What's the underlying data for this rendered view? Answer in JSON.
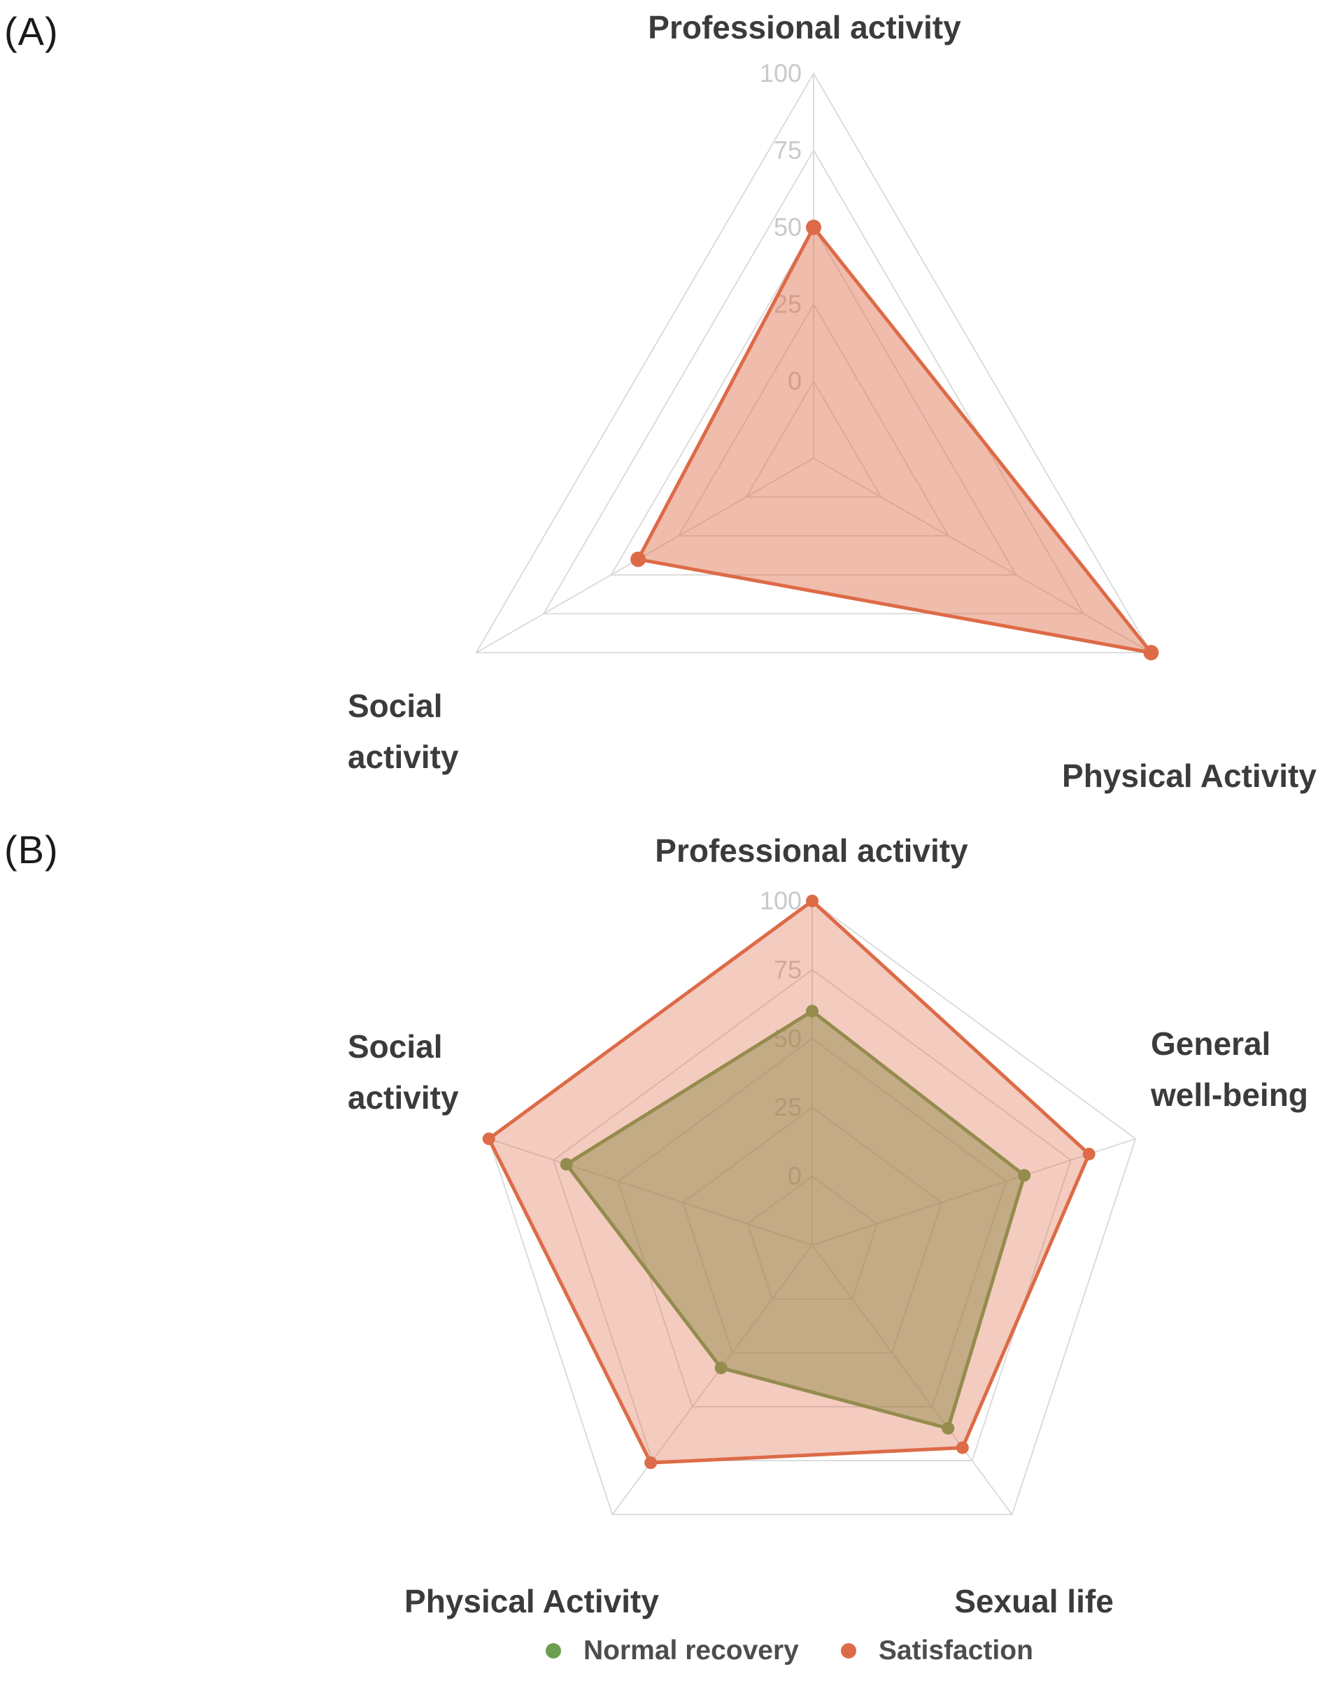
{
  "figure": {
    "panel_a_label": "(A)",
    "panel_b_label": "(B)"
  },
  "colors": {
    "background": "#ffffff",
    "grid": "#d9d9d9",
    "tick_label": "#c9c9c9",
    "category_label": "#3b3b3b",
    "legend_text": "#4d4d4d",
    "satisfaction": "#dd6b47",
    "normal_recovery": "#6d9e50"
  },
  "legend": {
    "items": [
      {
        "label": "Normal recovery",
        "color": "#6d9e50"
      },
      {
        "label": "Satisfaction",
        "color": "#dd6b47"
      }
    ]
  },
  "chart_data": [
    {
      "type": "radar",
      "panel": "A",
      "title": "",
      "categories": [
        "Professional activity",
        "Physical Activity",
        "Social activity"
      ],
      "series": [
        {
          "name": "Satisfaction",
          "color": "#dd6b47",
          "fill_opacity": 0.45,
          "marker": "dot",
          "values": [
            50,
            100,
            40
          ]
        }
      ],
      "axis": {
        "min": -25,
        "max": 100,
        "ticks": [
          0,
          25,
          50,
          75,
          100
        ]
      },
      "grid": true,
      "legend_position": "none"
    },
    {
      "type": "radar",
      "panel": "B",
      "title": "",
      "categories": [
        "Professional activity",
        "General well-being",
        "Sexual life",
        "Physical Activity",
        "Social activity"
      ],
      "series": [
        {
          "name": "Normal recovery",
          "color": "#6d9e50",
          "fill_opacity": 0.5,
          "marker": "dot",
          "values": [
            60,
            57,
            60,
            32,
            70
          ]
        },
        {
          "name": "Satisfaction",
          "color": "#dd6b47",
          "fill_opacity": 0.35,
          "marker": "dot",
          "values": [
            100,
            82,
            69,
            76,
            100
          ]
        }
      ],
      "axis": {
        "min": -25,
        "max": 100,
        "ticks": [
          0,
          25,
          50,
          75,
          100
        ]
      },
      "grid": true,
      "legend_position": "bottom"
    }
  ]
}
